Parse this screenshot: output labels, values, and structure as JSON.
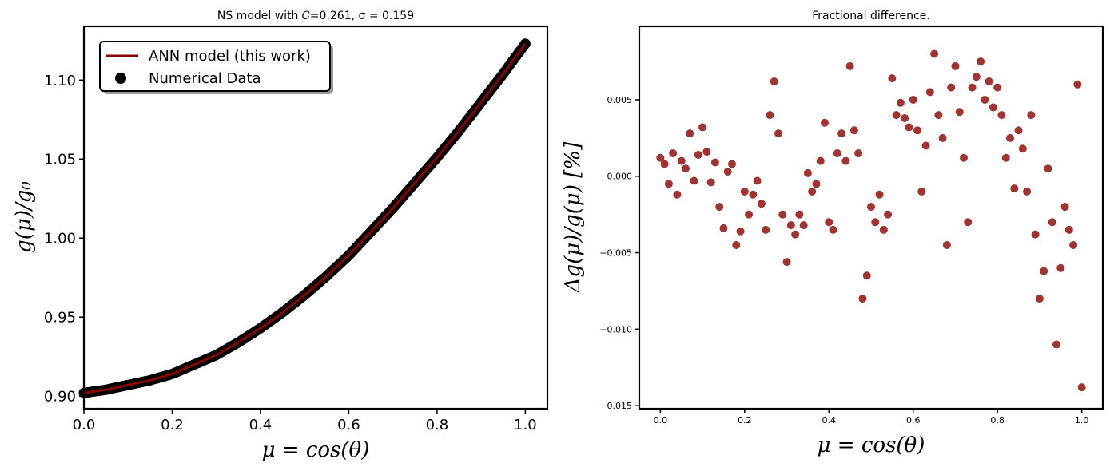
{
  "chart_data": [
    {
      "type": "line",
      "title": "NS model with 𝐶=0.261, σ = 0.159",
      "xlabel": "μ = cos(θ)",
      "ylabel": "g(μ)/g₀",
      "xlim": [
        0.0,
        1.05
      ],
      "ylim": [
        0.892,
        1.134
      ],
      "xticks": [
        0.0,
        0.2,
        0.4,
        0.6,
        0.8,
        1.0
      ],
      "xtick_labels": [
        "0.0",
        "0.2",
        "0.4",
        "0.6",
        "0.8",
        "1.0"
      ],
      "yticks": [
        0.9,
        0.95,
        1.0,
        1.05,
        1.1
      ],
      "ytick_labels": [
        "0.90",
        "0.95",
        "1.00",
        "1.05",
        "1.10"
      ],
      "grid": false,
      "legend": {
        "position": "top-left"
      },
      "series": [
        {
          "name": "ANN model (this work)",
          "kind": "line",
          "color": "#8b0000",
          "x": [
            0.0,
            0.05,
            0.1,
            0.15,
            0.2,
            0.25,
            0.3,
            0.35,
            0.4,
            0.45,
            0.5,
            0.55,
            0.6,
            0.65,
            0.7,
            0.75,
            0.8,
            0.85,
            0.9,
            0.95,
            1.0
          ],
          "y": [
            0.902,
            0.904,
            0.907,
            0.91,
            0.914,
            0.92,
            0.926,
            0.934,
            0.943,
            0.953,
            0.964,
            0.976,
            0.989,
            1.004,
            1.019,
            1.035,
            1.051,
            1.068,
            1.086,
            1.104,
            1.123
          ]
        },
        {
          "name": "Numerical Data",
          "kind": "scatter",
          "color": "#000000",
          "x": [
            0.0,
            0.05,
            0.1,
            0.15,
            0.2,
            0.25,
            0.3,
            0.35,
            0.4,
            0.45,
            0.5,
            0.55,
            0.6,
            0.65,
            0.7,
            0.75,
            0.8,
            0.85,
            0.9,
            0.95,
            1.0
          ],
          "y": [
            0.902,
            0.904,
            0.907,
            0.91,
            0.914,
            0.92,
            0.926,
            0.934,
            0.943,
            0.953,
            0.964,
            0.976,
            0.989,
            1.004,
            1.019,
            1.035,
            1.051,
            1.068,
            1.086,
            1.104,
            1.123
          ]
        }
      ]
    },
    {
      "type": "scatter",
      "title": "Fractional difference.",
      "xlabel": "μ = cos(θ)",
      "ylabel": "Δg(μ)/g(μ)  [%]",
      "xlim": [
        -0.05,
        1.05
      ],
      "ylim": [
        -0.0152,
        0.0098
      ],
      "xticks": [
        0.0,
        0.2,
        0.4,
        0.6,
        0.8,
        1.0
      ],
      "xtick_labels": [
        "0.0",
        "0.2",
        "0.4",
        "0.6",
        "0.8",
        "1.0"
      ],
      "yticks": [
        0.005,
        0.0,
        -0.005,
        -0.01,
        -0.015
      ],
      "ytick_labels": [
        "0.005",
        "0.000",
        "−0.005",
        "−0.010",
        "−0.015"
      ],
      "grid": false,
      "series": [
        {
          "color": "#8b0000",
          "x": [
            0.0,
            0.01,
            0.02,
            0.03,
            0.04,
            0.05,
            0.06,
            0.07,
            0.08,
            0.09,
            0.1,
            0.11,
            0.12,
            0.13,
            0.14,
            0.15,
            0.16,
            0.17,
            0.18,
            0.19,
            0.2,
            0.21,
            0.22,
            0.23,
            0.24,
            0.25,
            0.26,
            0.27,
            0.28,
            0.29,
            0.3,
            0.31,
            0.32,
            0.33,
            0.34,
            0.35,
            0.36,
            0.37,
            0.38,
            0.39,
            0.4,
            0.41,
            0.42,
            0.43,
            0.44,
            0.45,
            0.46,
            0.47,
            0.48,
            0.49,
            0.5,
            0.51,
            0.52,
            0.53,
            0.54,
            0.55,
            0.56,
            0.57,
            0.58,
            0.59,
            0.6,
            0.61,
            0.62,
            0.63,
            0.64,
            0.65,
            0.66,
            0.67,
            0.68,
            0.69,
            0.7,
            0.71,
            0.72,
            0.73,
            0.74,
            0.75,
            0.76,
            0.77,
            0.78,
            0.79,
            0.8,
            0.81,
            0.82,
            0.83,
            0.84,
            0.85,
            0.86,
            0.87,
            0.88,
            0.89,
            0.9,
            0.91,
            0.92,
            0.93,
            0.94,
            0.95,
            0.96,
            0.97,
            0.98,
            0.99,
            1.0
          ],
          "y": [
            0.0012,
            0.0008,
            -0.0005,
            0.0015,
            -0.0012,
            0.001,
            0.0005,
            0.0028,
            -0.0003,
            0.0014,
            0.0032,
            0.0016,
            -0.0004,
            0.0009,
            -0.002,
            -0.0034,
            0.0003,
            0.0008,
            -0.0045,
            -0.0036,
            -0.001,
            -0.0025,
            -0.0012,
            -0.0003,
            -0.0018,
            -0.0035,
            0.004,
            0.0062,
            0.0028,
            -0.0025,
            -0.0056,
            -0.0032,
            -0.0038,
            -0.0025,
            -0.0032,
            0.0002,
            -0.001,
            -0.0005,
            0.001,
            0.0035,
            -0.003,
            -0.0035,
            0.0015,
            0.0028,
            0.001,
            0.0072,
            0.003,
            0.0015,
            -0.008,
            -0.0065,
            -0.002,
            -0.003,
            -0.0012,
            -0.0035,
            -0.0025,
            0.0064,
            0.004,
            0.0048,
            0.0038,
            0.0032,
            0.005,
            0.003,
            -0.001,
            0.002,
            0.0055,
            0.008,
            0.004,
            0.0025,
            -0.0045,
            0.0058,
            0.0072,
            0.0042,
            0.0012,
            -0.003,
            0.0058,
            0.0065,
            0.0075,
            0.005,
            0.0062,
            0.0045,
            0.0058,
            0.004,
            0.0012,
            0.0025,
            -0.0008,
            0.003,
            0.0018,
            -0.001,
            0.004,
            -0.0038,
            -0.008,
            -0.0062,
            0.0005,
            -0.003,
            -0.011,
            -0.006,
            -0.002,
            -0.0035,
            -0.0045,
            0.006,
            -0.0138
          ]
        }
      ]
    }
  ]
}
